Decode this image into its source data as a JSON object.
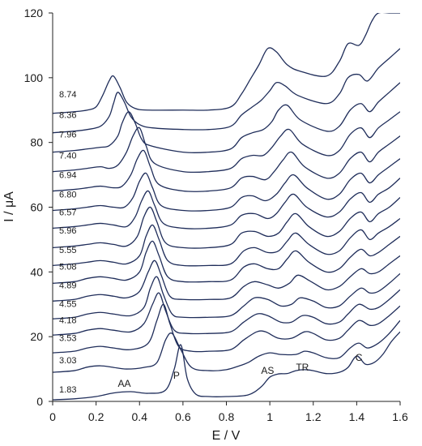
{
  "chart_data": {
    "type": "line",
    "xlabel": "E / V",
    "ylabel": "I / μA",
    "xlim": [
      0,
      1.6
    ],
    "ylim": [
      0,
      120
    ],
    "x_ticks": [
      "0",
      "0.2",
      "0.4",
      "0.6",
      "0.8",
      "1",
      "1.2",
      "1.4",
      "1.6"
    ],
    "y_ticks": [
      "0",
      "20",
      "40",
      "60",
      "80",
      "100",
      "120"
    ],
    "grid": false,
    "line_color": "#1f2d5a",
    "annotations": [
      {
        "text": "AA",
        "x": 0.33,
        "y": 4.5
      },
      {
        "text": "P",
        "x": 0.57,
        "y": 7
      },
      {
        "text": "AS",
        "x": 0.99,
        "y": 8.5
      },
      {
        "text": "TR",
        "x": 1.15,
        "y": 9.5
      },
      {
        "text": "C",
        "x": 1.41,
        "y": 12.5
      }
    ],
    "series": [
      {
        "name": "1.83",
        "label_x": 0.03,
        "label_y": 2.8,
        "x": [
          0,
          0.1,
          0.2,
          0.28,
          0.36,
          0.44,
          0.52,
          0.56,
          0.59,
          0.62,
          0.66,
          0.72,
          0.8,
          0.9,
          0.96,
          1.0,
          1.04,
          1.08,
          1.12,
          1.16,
          1.2,
          1.26,
          1.32,
          1.36,
          1.4,
          1.44,
          1.48,
          1.52,
          1.56,
          1.6
        ],
        "y": [
          0.5,
          0.8,
          1.5,
          2.6,
          3.0,
          2.5,
          3.5,
          10,
          17.5,
          7,
          2.2,
          1.5,
          1.5,
          2.0,
          4.5,
          7.5,
          8.5,
          8.6,
          9.5,
          9.8,
          9.5,
          8.6,
          9.0,
          10.5,
          14.0,
          11.5,
          12.0,
          14.5,
          18.5,
          21.5
        ]
      },
      {
        "name": "3.03",
        "label_x": 0.03,
        "label_y": 11.8,
        "x": [
          0,
          0.1,
          0.16,
          0.22,
          0.28,
          0.34,
          0.42,
          0.48,
          0.52,
          0.55,
          0.59,
          0.64,
          0.72,
          0.8,
          0.86,
          0.9,
          0.95,
          1.0,
          1.05,
          1.12,
          1.16,
          1.2,
          1.26,
          1.32,
          1.37,
          1.41,
          1.45,
          1.5,
          1.55,
          1.6
        ],
        "y": [
          9.0,
          9.5,
          10.6,
          11.0,
          10.5,
          10.0,
          10.5,
          12,
          19,
          21,
          16,
          10.5,
          9.5,
          9.8,
          11.0,
          12.0,
          14.0,
          15.0,
          14.5,
          14.5,
          15.5,
          15.0,
          13.5,
          13.5,
          16.5,
          18.0,
          16.5,
          18.0,
          21.0,
          25.0
        ]
      },
      {
        "name": "3.53",
        "label_x": 0.03,
        "label_y": 18.7,
        "x": [
          0,
          0.1,
          0.16,
          0.22,
          0.28,
          0.36,
          0.44,
          0.48,
          0.51,
          0.54,
          0.58,
          0.64,
          0.72,
          0.82,
          0.88,
          0.94,
          0.98,
          1.04,
          1.1,
          1.16,
          1.2,
          1.26,
          1.32,
          1.36,
          1.41,
          1.46,
          1.5,
          1.55,
          1.6
        ],
        "y": [
          15.0,
          15.5,
          16.5,
          17.0,
          16.5,
          16.0,
          18,
          25,
          30,
          24,
          17.0,
          15.5,
          15.5,
          16.0,
          19.0,
          21.5,
          21.5,
          19.5,
          19.5,
          21.5,
          21.0,
          19.0,
          19.5,
          22.0,
          25.0,
          23.5,
          24.0,
          26.5,
          29.5
        ]
      },
      {
        "name": "4.18",
        "label_x": 0.03,
        "label_y": 24.2,
        "x": [
          0,
          0.1,
          0.16,
          0.22,
          0.28,
          0.36,
          0.42,
          0.46,
          0.49,
          0.52,
          0.56,
          0.62,
          0.72,
          0.82,
          0.88,
          0.94,
          0.99,
          1.05,
          1.1,
          1.15,
          1.2,
          1.26,
          1.32,
          1.36,
          1.41,
          1.46,
          1.5,
          1.55,
          1.6
        ],
        "y": [
          20.5,
          21.0,
          22.0,
          22.5,
          22.0,
          21.5,
          24,
          30,
          33.5,
          28,
          22.0,
          21.0,
          21.0,
          21.5,
          24.5,
          27.0,
          26.5,
          24.5,
          24.5,
          26.5,
          26.0,
          24.0,
          24.5,
          27.0,
          30.0,
          28.5,
          29.0,
          31.5,
          34.5
        ]
      },
      {
        "name": "4.55",
        "label_x": 0.03,
        "label_y": 29.2,
        "x": [
          0,
          0.1,
          0.16,
          0.22,
          0.28,
          0.36,
          0.42,
          0.45,
          0.48,
          0.51,
          0.55,
          0.6,
          0.72,
          0.82,
          0.88,
          0.93,
          0.99,
          1.05,
          1.1,
          1.14,
          1.2,
          1.26,
          1.32,
          1.37,
          1.42,
          1.46,
          1.5,
          1.55,
          1.6
        ],
        "y": [
          25.5,
          26.0,
          27.0,
          27.5,
          27.0,
          26.5,
          29,
          35,
          38.5,
          33,
          27.0,
          26.0,
          26.0,
          26.5,
          29.5,
          32.0,
          31.5,
          29.5,
          30.0,
          32.0,
          31.0,
          29.0,
          29.5,
          32.5,
          35.0,
          33.5,
          34.0,
          36.5,
          39.5
        ]
      },
      {
        "name": "4.89",
        "label_x": 0.03,
        "label_y": 35.0,
        "x": [
          0,
          0.1,
          0.16,
          0.22,
          0.28,
          0.34,
          0.4,
          0.44,
          0.47,
          0.5,
          0.54,
          0.6,
          0.72,
          0.82,
          0.88,
          0.93,
          0.99,
          1.04,
          1.09,
          1.13,
          1.19,
          1.26,
          1.32,
          1.37,
          1.42,
          1.46,
          1.5,
          1.55,
          1.6
        ],
        "y": [
          31.0,
          31.5,
          32.5,
          33.0,
          32.5,
          32.0,
          34,
          40,
          43.5,
          39,
          32.5,
          31.5,
          31.5,
          32.0,
          35.5,
          37.0,
          36.0,
          35.0,
          36.5,
          39.0,
          37.0,
          34.5,
          35.5,
          38.5,
          41.0,
          39.5,
          40.0,
          42.5,
          45.0
        ]
      },
      {
        "name": "5.08",
        "label_x": 0.03,
        "label_y": 40.7,
        "x": [
          0,
          0.1,
          0.16,
          0.22,
          0.28,
          0.34,
          0.4,
          0.43,
          0.46,
          0.49,
          0.53,
          0.6,
          0.72,
          0.82,
          0.88,
          0.93,
          0.99,
          1.04,
          1.08,
          1.12,
          1.18,
          1.26,
          1.32,
          1.37,
          1.42,
          1.46,
          1.5,
          1.55,
          1.6
        ],
        "y": [
          36.5,
          37.0,
          38.0,
          38.5,
          38.0,
          37.5,
          40,
          46,
          49.5,
          45,
          38.5,
          37.0,
          37.0,
          37.5,
          41.5,
          42.5,
          41.0,
          41.0,
          44.0,
          46.5,
          43.0,
          40.0,
          41.0,
          44.5,
          47.0,
          45.0,
          46.0,
          48.5,
          51.0
        ]
      },
      {
        "name": "5.55",
        "label_x": 0.03,
        "label_y": 45.8,
        "x": [
          0,
          0.1,
          0.16,
          0.22,
          0.28,
          0.34,
          0.4,
          0.43,
          0.46,
          0.49,
          0.53,
          0.6,
          0.72,
          0.82,
          0.88,
          0.93,
          0.99,
          1.04,
          1.08,
          1.12,
          1.18,
          1.26,
          1.32,
          1.37,
          1.42,
          1.46,
          1.5,
          1.55,
          1.6
        ],
        "y": [
          42.0,
          42.5,
          43.0,
          43.5,
          43.0,
          42.5,
          45,
          51,
          54.5,
          50,
          43.5,
          42.0,
          42.0,
          42.5,
          46.5,
          47.5,
          46.0,
          46.5,
          49.5,
          52.0,
          48.5,
          45.5,
          46.5,
          50.5,
          53.0,
          50.0,
          52.0,
          54.0,
          56.5
        ]
      },
      {
        "name": "5.96",
        "label_x": 0.03,
        "label_y": 51.8,
        "x": [
          0,
          0.1,
          0.16,
          0.22,
          0.28,
          0.34,
          0.39,
          0.42,
          0.45,
          0.48,
          0.52,
          0.6,
          0.72,
          0.82,
          0.87,
          0.93,
          0.99,
          1.04,
          1.08,
          1.12,
          1.18,
          1.26,
          1.32,
          1.37,
          1.42,
          1.46,
          1.5,
          1.55,
          1.6
        ],
        "y": [
          47.5,
          48.0,
          48.5,
          49.0,
          48.5,
          48.0,
          51,
          57,
          60,
          55.5,
          49.0,
          47.5,
          47.5,
          48.5,
          52.0,
          52.5,
          51.0,
          52.0,
          55.5,
          58.0,
          54.0,
          51.0,
          52.5,
          56.5,
          58.5,
          55.5,
          58.0,
          60.0,
          63.0
        ]
      },
      {
        "name": "6.57",
        "label_x": 0.03,
        "label_y": 57.5,
        "x": [
          0,
          0.1,
          0.16,
          0.22,
          0.28,
          0.34,
          0.38,
          0.41,
          0.44,
          0.47,
          0.51,
          0.6,
          0.72,
          0.82,
          0.87,
          0.93,
          0.99,
          1.03,
          1.07,
          1.11,
          1.17,
          1.26,
          1.32,
          1.37,
          1.42,
          1.46,
          1.5,
          1.55,
          1.6
        ],
        "y": [
          53.5,
          54.0,
          54.5,
          55.0,
          54.5,
          54.0,
          57,
          62,
          65,
          60.5,
          55.0,
          53.5,
          53.5,
          54.5,
          57.5,
          58.0,
          56.5,
          58.0,
          61.5,
          64.0,
          60.0,
          57.0,
          58.5,
          62.5,
          64.5,
          61.5,
          64.0,
          66.0,
          69.0
        ]
      },
      {
        "name": "6.80",
        "label_x": 0.03,
        "label_y": 63.0,
        "x": [
          0,
          0.1,
          0.16,
          0.22,
          0.28,
          0.33,
          0.37,
          0.4,
          0.43,
          0.46,
          0.5,
          0.6,
          0.72,
          0.82,
          0.87,
          0.92,
          0.98,
          1.03,
          1.07,
          1.11,
          1.17,
          1.26,
          1.32,
          1.37,
          1.42,
          1.46,
          1.5,
          1.55,
          1.6
        ],
        "y": [
          59.0,
          59.5,
          60.0,
          60.5,
          60.0,
          60.0,
          63,
          68,
          70.5,
          66.0,
          60.5,
          59.0,
          59.0,
          60.0,
          63.0,
          63.5,
          62.0,
          64.0,
          67.5,
          70.0,
          66.0,
          62.5,
          64.0,
          68.5,
          70.5,
          67.5,
          70.0,
          72.5,
          75.0
        ]
      },
      {
        "name": "6.94",
        "label_x": 0.03,
        "label_y": 69.0,
        "x": [
          0,
          0.1,
          0.16,
          0.22,
          0.28,
          0.32,
          0.36,
          0.39,
          0.42,
          0.45,
          0.49,
          0.6,
          0.72,
          0.82,
          0.87,
          0.92,
          0.98,
          1.02,
          1.06,
          1.1,
          1.16,
          1.26,
          1.32,
          1.37,
          1.42,
          1.46,
          1.5,
          1.55,
          1.6
        ],
        "y": [
          65.0,
          65.5,
          66.0,
          66.5,
          66.0,
          66.5,
          70,
          75,
          77.5,
          72.5,
          67.0,
          65.0,
          65.0,
          66.0,
          69.0,
          69.5,
          68.5,
          71.0,
          74.5,
          77.0,
          72.5,
          69.0,
          70.5,
          75.0,
          77.0,
          74.0,
          77.0,
          79.5,
          82.0
        ]
      },
      {
        "name": "7.40",
        "label_x": 0.03,
        "label_y": 75.0,
        "x": [
          0,
          0.1,
          0.16,
          0.22,
          0.26,
          0.3,
          0.34,
          0.37,
          0.4,
          0.43,
          0.47,
          0.6,
          0.72,
          0.82,
          0.87,
          0.92,
          0.97,
          1.01,
          1.05,
          1.09,
          1.15,
          1.26,
          1.32,
          1.37,
          1.42,
          1.46,
          1.5,
          1.55,
          1.6
        ],
        "y": [
          71.0,
          71.5,
          72.0,
          72.5,
          72.0,
          73.0,
          77,
          82,
          84.5,
          79.0,
          73.5,
          71.0,
          71.0,
          72.0,
          75.0,
          76.0,
          76.0,
          78.5,
          82.0,
          84.0,
          79.5,
          76.0,
          77.5,
          82.5,
          84.5,
          81.5,
          84.5,
          87.0,
          89.5
        ]
      },
      {
        "name": "7.96",
        "label_x": 0.03,
        "label_y": 81.5,
        "x": [
          0,
          0.1,
          0.16,
          0.22,
          0.26,
          0.3,
          0.32,
          0.35,
          0.38,
          0.41,
          0.45,
          0.6,
          0.72,
          0.82,
          0.87,
          0.92,
          0.97,
          1.01,
          1.04,
          1.08,
          1.14,
          1.26,
          1.32,
          1.37,
          1.42,
          1.46,
          1.5,
          1.55,
          1.6
        ],
        "y": [
          77.0,
          77.5,
          78.0,
          78.5,
          79.0,
          82.0,
          86,
          89.5,
          86.0,
          81.0,
          79.0,
          77.0,
          77.0,
          78.0,
          81.5,
          83.0,
          84.0,
          86.5,
          90.0,
          91.5,
          87.0,
          83.5,
          85.0,
          90.0,
          92.0,
          89.5,
          92.5,
          95.5,
          98.5
        ]
      },
      {
        "name": "8.36",
        "label_x": 0.03,
        "label_y": 87.5,
        "x": [
          0,
          0.1,
          0.16,
          0.22,
          0.26,
          0.28,
          0.3,
          0.33,
          0.36,
          0.4,
          0.46,
          0.6,
          0.72,
          0.82,
          0.87,
          0.92,
          0.96,
          1.0,
          1.03,
          1.07,
          1.13,
          1.26,
          1.32,
          1.36,
          1.41,
          1.45,
          1.5,
          1.55,
          1.6
        ],
        "y": [
          83.0,
          83.5,
          84.0,
          85.0,
          88.0,
          92.0,
          95.5,
          92.5,
          88.0,
          85.5,
          84.5,
          84.0,
          84.0,
          85.0,
          88.5,
          91.0,
          93.0,
          96.0,
          98.5,
          97.5,
          94.5,
          92.0,
          95.0,
          100.0,
          101.0,
          99.0,
          103.0,
          106.0,
          109.0
        ]
      },
      {
        "name": "8.74",
        "label_x": 0.03,
        "label_y": 94.0,
        "x": [
          0,
          0.1,
          0.16,
          0.2,
          0.23,
          0.26,
          0.28,
          0.31,
          0.34,
          0.38,
          0.44,
          0.6,
          0.72,
          0.82,
          0.87,
          0.91,
          0.95,
          0.99,
          1.03,
          1.08,
          1.14,
          1.26,
          1.32,
          1.36,
          1.41,
          1.44,
          1.47,
          1.5,
          1.55,
          1.6
        ],
        "y": [
          89.0,
          89.5,
          90.0,
          91.0,
          94.5,
          99.0,
          100.5,
          97.0,
          92.5,
          90.5,
          90.0,
          90.0,
          90.0,
          91.0,
          95.0,
          99.5,
          104.0,
          109.0,
          108.0,
          104.0,
          102.0,
          100.5,
          105.0,
          110.5,
          110.0,
          113.0,
          117.5,
          120.0,
          120.0,
          120.0
        ]
      }
    ]
  }
}
